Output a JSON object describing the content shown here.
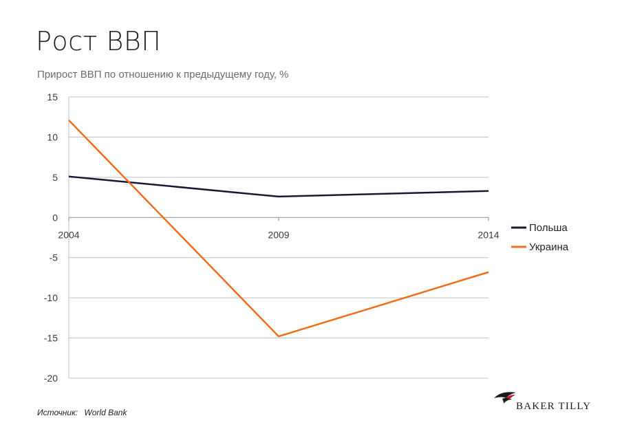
{
  "page": {
    "title": "Рост ВВП",
    "subtitle": "Прирост ВВП по отношению к предыдущему году, %",
    "source_label": "Источник:",
    "source_value": "World Bank",
    "logo_text": "BAKER TILLY"
  },
  "colors": {
    "poland": "#141a33",
    "ukraine": "#f26c1a",
    "grid": "#bfbfbf"
  },
  "chart_data": {
    "type": "line",
    "title": "Прирост ВВП по отношению к предыдущему году, %",
    "xlabel": "",
    "ylabel": "",
    "categories": [
      "2004",
      "2009",
      "2014"
    ],
    "ylim": [
      -20,
      15
    ],
    "y_ticks": [
      15,
      10,
      5,
      0,
      -5,
      -10,
      -15,
      -20
    ],
    "y_tick_labels": [
      "15",
      "10",
      "5",
      "0",
      "-5",
      "-10",
      "-15",
      "-20"
    ],
    "grid": true,
    "legend_position": "right",
    "series": [
      {
        "name": "Польша",
        "values": [
          5.1,
          2.6,
          3.3
        ],
        "color": "#141a33"
      },
      {
        "name": "Украина",
        "values": [
          12.1,
          -14.8,
          -6.8
        ],
        "color": "#f26c1a"
      }
    ]
  }
}
